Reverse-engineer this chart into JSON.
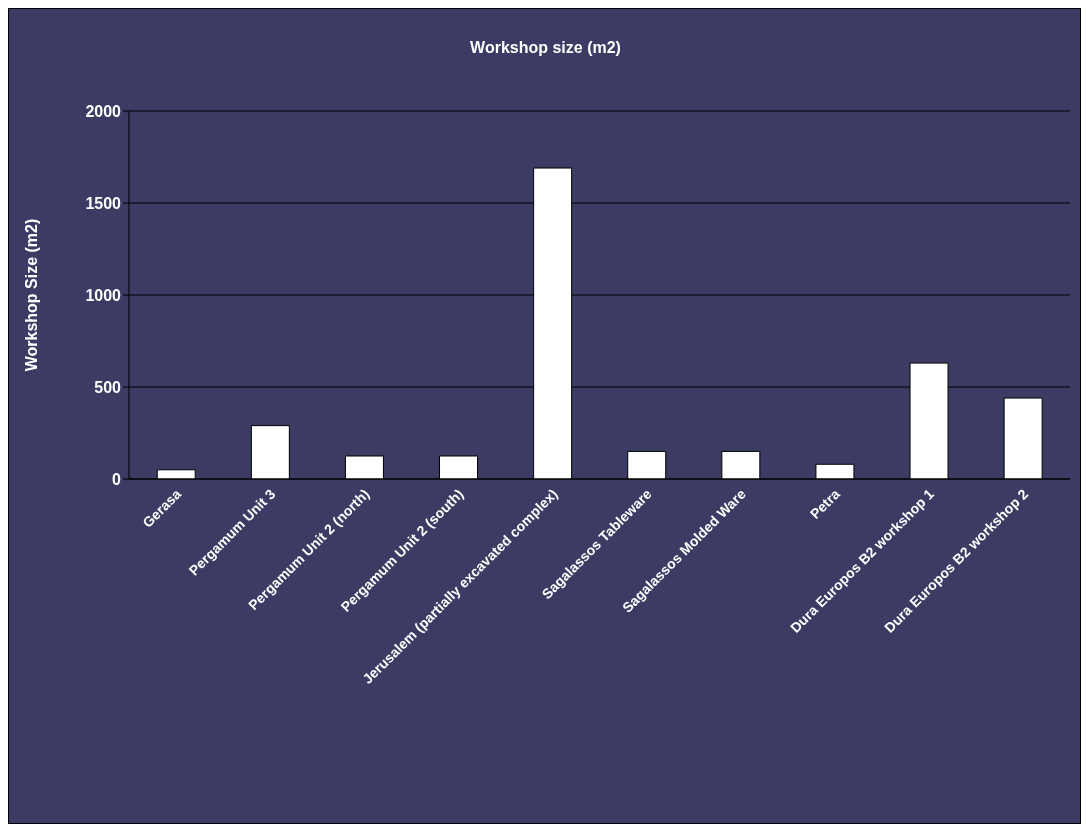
{
  "chart_data": {
    "type": "bar",
    "title": "Workshop size (m2)",
    "ylabel": "Workshop Size (m2)",
    "categories": [
      "Gerasa",
      "Pergamum Unit 3",
      "Pergamum Unit 2 (north)",
      "Pergamum Unit 2 (south)",
      "Jerusalem (partially excavated complex)",
      "Sagalassos Tableware",
      "Sagalassos Molded Ware",
      "Petra",
      "Dura Europos B2 workshop 1",
      "Dura Europos B2 workshop 2"
    ],
    "values": [
      50,
      290,
      125,
      125,
      1690,
      150,
      150,
      80,
      630,
      440
    ],
    "color": "#ffffff",
    "ylim": [
      0,
      2000
    ],
    "yticks": [
      0,
      500,
      1000,
      1500,
      2000
    ],
    "grid": "y"
  }
}
